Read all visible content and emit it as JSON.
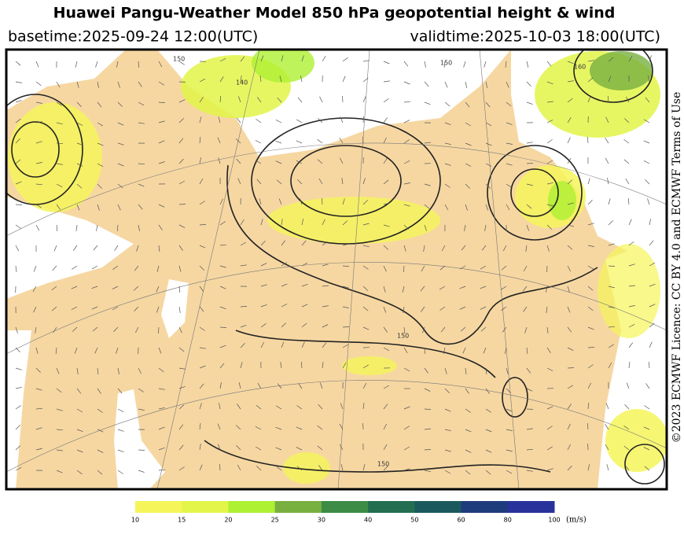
{
  "header": {
    "title": "Huawei Pangu-Weather Model 850 hPa geopotential height & wind",
    "basetime": "basetime:2025-09-24 12:00(UTC)",
    "validtime": "validtime:2025-10-03 18:00(UTC)"
  },
  "licence": "©2023 ECMWF Licence: CC BY 4.0 and ECMWF Terms of Use",
  "contour_labels": [
    "150",
    "140",
    "150",
    "150",
    "160",
    "150"
  ],
  "colorbar": {
    "ticks": [
      10,
      15,
      20,
      25,
      30,
      40,
      50,
      60,
      80,
      100
    ],
    "colors": [
      "#f5f55a",
      "#e2f548",
      "#aef032",
      "#78b040",
      "#3c8c46",
      "#236e50",
      "#1a5a5e",
      "#1e3c7c",
      "#28329a"
    ],
    "unit": "(m/s)"
  }
}
